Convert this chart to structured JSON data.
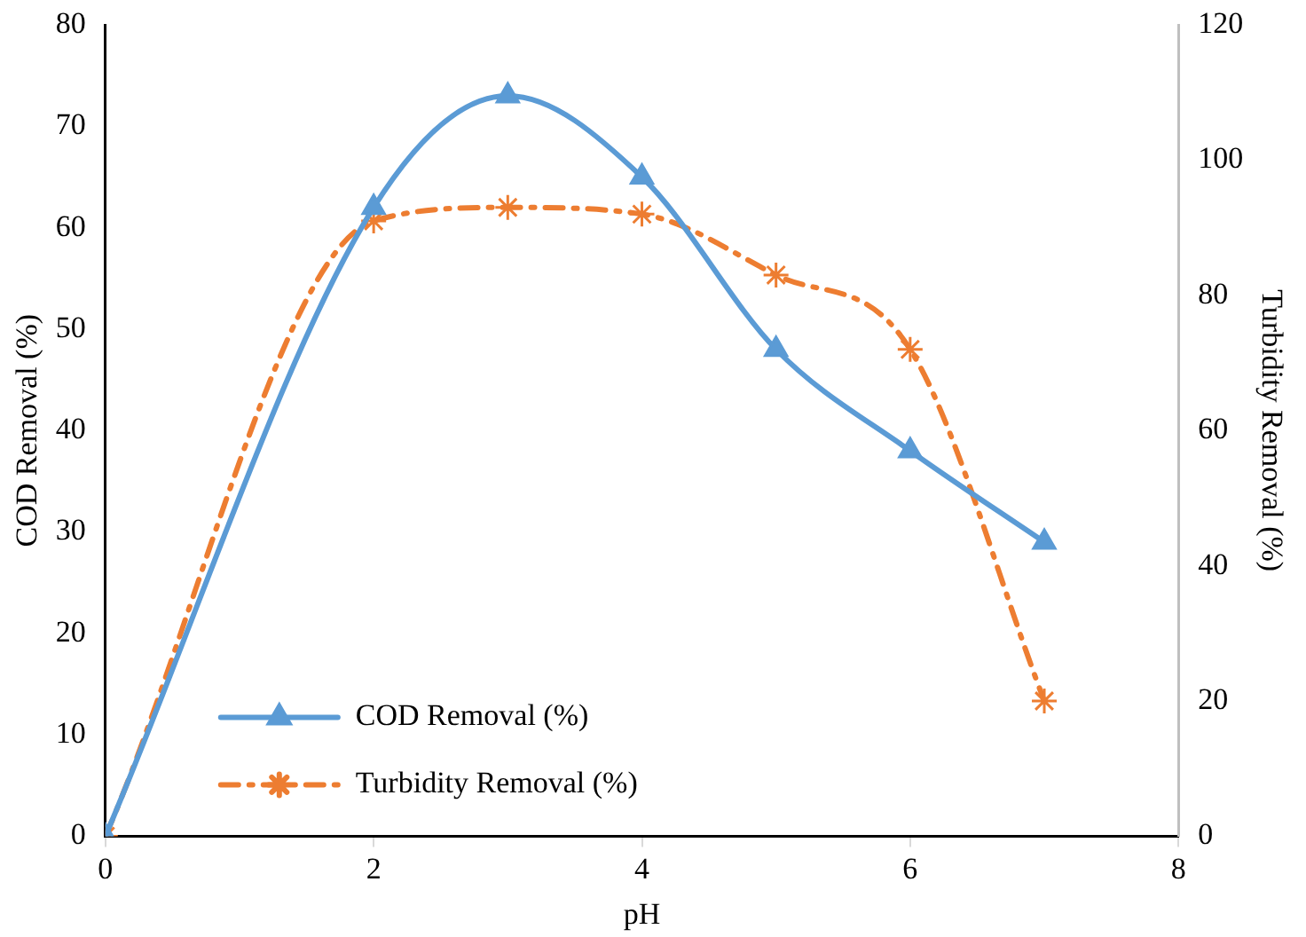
{
  "chart_data": {
    "type": "line",
    "xlabel": "pH",
    "ylabel": "COD Removal (%)",
    "y2label": "Turbidity Removal (%)",
    "x": [
      0,
      2,
      3,
      4,
      5,
      6,
      7
    ],
    "series": [
      {
        "name": "COD Removal (%)",
        "color": "#5b9bd5",
        "values": [
          0,
          62,
          73,
          65,
          48,
          38,
          29
        ],
        "marker": "triangle",
        "line_style": "solid"
      },
      {
        "name": "Turbidity Removal (%)",
        "color": "#ed7d31",
        "values": [
          0,
          91,
          93,
          92,
          83,
          72,
          20
        ],
        "marker": "cross",
        "line_style": "dashed",
        "axis": "y2"
      }
    ],
    "xlim": [
      0,
      8
    ],
    "xticks": [
      0,
      2,
      4,
      6,
      8
    ],
    "ylim": [
      0,
      80
    ],
    "yticks": [
      0,
      10,
      20,
      30,
      40,
      50,
      60,
      70,
      80
    ],
    "y2lim": [
      0,
      120
    ],
    "y2ticks": [
      0,
      20,
      40,
      60,
      80,
      100,
      120
    ],
    "grid": false,
    "legend": "bottom left"
  }
}
